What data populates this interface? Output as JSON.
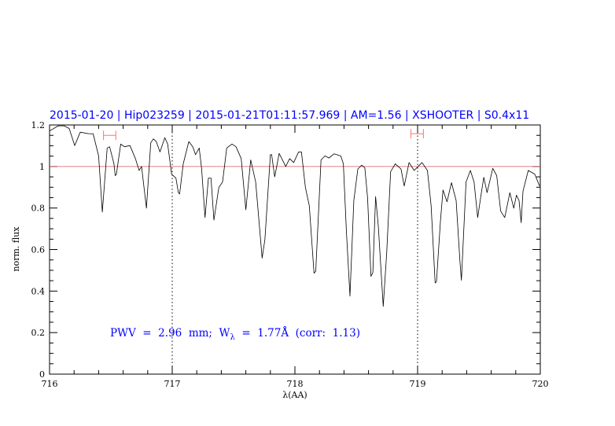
{
  "chart_data": {
    "type": "line",
    "title": "2015-01-20 | Hip023259 | 2015-01-21T01:11:57.969 | AM=1.56 | XSHOOTER | S0.4x11",
    "xlabel": "λ(AA)",
    "ylabel": "norm. flux",
    "xlim": [
      716,
      720
    ],
    "ylim": [
      0,
      1.2
    ],
    "x_ticks": [
      "716",
      "717",
      "718",
      "719",
      "720"
    ],
    "y_ticks": [
      "0",
      "0.2",
      "0.4",
      "0.6",
      "0.8",
      "1",
      "1.2"
    ],
    "grid": false,
    "reference_line": {
      "y": 1.0,
      "color": "#e07070"
    },
    "vertical_markers": [
      717,
      719
    ],
    "range_markers": [
      {
        "x": [
          716.44,
          716.54
        ],
        "y": 1.15,
        "color": "#ff7070"
      },
      {
        "x": [
          718.945,
          719.047
        ],
        "y": 1.158,
        "color": "#ff7070"
      }
    ],
    "annotation": {
      "text_prefix": "PWV  =  2.96  mm;  W",
      "subscript": "λ",
      "text_suffix": "  =  1.77Å  (corr:  1.13)",
      "pwv_mm": 2.96,
      "w_lambda_A": 1.77,
      "corr": 1.13,
      "color": "#0000ff"
    },
    "series": [
      {
        "name": "spectrum",
        "color": "#000000",
        "x": [
          716.0,
          716.07,
          716.12,
          716.16,
          716.205,
          716.25,
          716.32,
          716.355,
          716.4,
          716.43,
          716.47,
          716.49,
          716.525,
          716.535,
          716.545,
          716.58,
          716.61,
          716.655,
          716.7,
          716.73,
          716.75,
          716.79,
          716.825,
          716.846,
          716.87,
          716.9,
          716.94,
          716.963,
          716.995,
          717.03,
          717.05,
          717.06,
          717.09,
          717.135,
          717.167,
          717.19,
          717.22,
          717.24,
          717.267,
          717.295,
          717.316,
          717.34,
          717.38,
          717.41,
          717.444,
          717.487,
          717.52,
          717.562,
          717.6,
          717.64,
          717.68,
          717.733,
          717.755,
          717.8,
          717.81,
          717.835,
          717.872,
          717.925,
          717.957,
          717.99,
          718.03,
          718.053,
          718.085,
          718.117,
          718.156,
          718.17,
          718.213,
          718.245,
          718.277,
          718.32,
          718.374,
          718.395,
          718.42,
          718.449,
          718.48,
          718.513,
          718.545,
          718.57,
          718.592,
          718.62,
          718.635,
          718.658,
          718.68,
          718.72,
          718.748,
          718.78,
          718.818,
          718.865,
          718.891,
          718.93,
          718.972,
          719.036,
          719.08,
          719.11,
          719.143,
          719.154,
          719.186,
          719.207,
          719.24,
          719.276,
          719.314,
          719.346,
          719.357,
          719.395,
          719.43,
          719.46,
          719.49,
          719.523,
          719.54,
          719.566,
          719.613,
          719.645,
          719.677,
          719.71,
          719.752,
          719.784,
          719.806,
          719.827,
          719.844,
          719.859,
          719.902,
          719.955,
          719.994
        ],
        "y": [
          1.171,
          1.196,
          1.196,
          1.183,
          1.101,
          1.165,
          1.158,
          1.158,
          1.051,
          0.78,
          1.089,
          1.095,
          1.013,
          0.956,
          0.963,
          1.108,
          1.095,
          1.101,
          1.038,
          0.981,
          1.0,
          0.799,
          1.114,
          1.133,
          1.12,
          1.07,
          1.139,
          1.108,
          0.963,
          0.944,
          0.874,
          0.868,
          1.013,
          1.12,
          1.095,
          1.057,
          1.089,
          0.988,
          0.754,
          0.944,
          0.944,
          0.742,
          0.9,
          0.925,
          1.089,
          1.108,
          1.095,
          1.038,
          0.792,
          1.032,
          0.925,
          0.559,
          0.647,
          1.057,
          1.057,
          0.95,
          1.063,
          1.0,
          1.038,
          1.019,
          1.07,
          1.07,
          0.9,
          0.811,
          0.486,
          0.496,
          1.032,
          1.051,
          1.041,
          1.061,
          1.051,
          1.013,
          0.685,
          0.376,
          0.836,
          0.988,
          1.006,
          0.994,
          0.849,
          0.471,
          0.489,
          0.855,
          0.71,
          0.326,
          0.584,
          0.975,
          1.013,
          0.988,
          0.906,
          1.019,
          0.981,
          1.019,
          0.981,
          0.811,
          0.439,
          0.445,
          0.735,
          0.887,
          0.83,
          0.922,
          0.836,
          0.534,
          0.452,
          0.925,
          0.981,
          0.925,
          0.754,
          0.887,
          0.948,
          0.874,
          0.991,
          0.956,
          0.786,
          0.754,
          0.874,
          0.799,
          0.862,
          0.836,
          0.729,
          0.881,
          0.981,
          0.963,
          0.906
        ]
      }
    ]
  }
}
